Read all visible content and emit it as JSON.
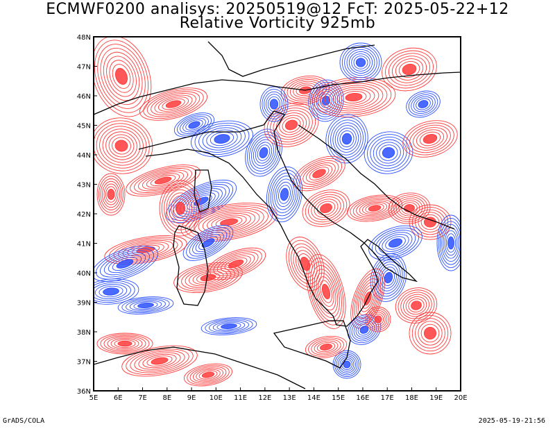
{
  "header": {
    "title_line1": "ECMWF0200 analisys: 20250519@12 FcT: 2025-05-22+12",
    "title_line2": "Relative Vorticity 925mb"
  },
  "axes": {
    "lon_labels": [
      "5E",
      "6E",
      "7E",
      "8E",
      "9E",
      "10E",
      "11E",
      "12E",
      "13E",
      "14E",
      "15E",
      "16E",
      "17E",
      "18E",
      "19E",
      "20E"
    ],
    "lat_labels": [
      "36N",
      "37N",
      "38N",
      "39N",
      "40N",
      "41N",
      "42N",
      "43N",
      "44N",
      "45N",
      "46N",
      "47N",
      "48N"
    ],
    "lon_range": [
      5,
      20
    ],
    "lat_range": [
      36,
      48
    ]
  },
  "colors": {
    "positive": "#ff3a3a",
    "negative": "#2a4fff",
    "positive_fill": "#ff4a4a",
    "negative_fill": "#3355ff",
    "coast": "#000000"
  },
  "footer": {
    "left": "GrADS/COLA",
    "right": "2025-05-19-21:56"
  }
}
